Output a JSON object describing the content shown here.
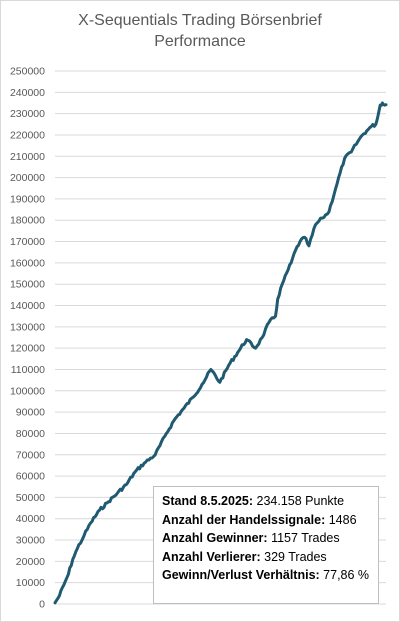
{
  "title_line1": "X-Sequentials Trading Börsenbrief",
  "title_line2": "Performance",
  "colors": {
    "series": "#1f5a70",
    "grid": "#d9d9d9",
    "text": "#595959"
  },
  "info_box": [
    {
      "label": "Stand 8.5.2025:",
      "value": "234.158 Punkte"
    },
    {
      "label": "Anzahl der Handelssignale:",
      "value": "1486"
    },
    {
      "label": "Anzahl Gewinner:",
      "value": "1157 Trades"
    },
    {
      "label": "Anzahl Verlierer:",
      "value": "329 Trades"
    },
    {
      "label": "Gewinn/Verlust Verhältnis:",
      "value": "77,86 %"
    }
  ],
  "chart_data": {
    "type": "line",
    "title": "X-Sequentials Trading Börsenbrief Performance",
    "xlabel": "",
    "ylabel": "",
    "ylim": [
      0,
      250000
    ],
    "yticks": [
      "0",
      "10000",
      "20000",
      "30000",
      "40000",
      "50000",
      "60000",
      "70000",
      "80000",
      "90000",
      "100000",
      "110000",
      "120000",
      "130000",
      "140000",
      "150000",
      "160000",
      "170000",
      "180000",
      "190000",
      "200000",
      "210000",
      "220000",
      "230000",
      "240000",
      "250000"
    ],
    "grid": true,
    "legend": "none",
    "series": [
      {
        "x": [
          0,
          20,
          40,
          60,
          80,
          100,
          130,
          160,
          200,
          240,
          280,
          320,
          360,
          400,
          450,
          500,
          540,
          580,
          620,
          660,
          700,
          740,
          780,
          820,
          860,
          900,
          930,
          960,
          990,
          1000,
          1020,
          1060,
          1080,
          1100,
          1120,
          1140,
          1170,
          1200,
          1230,
          1260,
          1300,
          1330,
          1360,
          1380,
          1400,
          1420,
          1440,
          1450,
          1460,
          1470,
          1480,
          1486
        ],
        "values": [
          500,
          4000,
          9000,
          14000,
          21000,
          26000,
          32000,
          38000,
          44000,
          48000,
          52000,
          56000,
          62000,
          66000,
          70000,
          80000,
          87000,
          92000,
          97000,
          103000,
          110000,
          104000,
          112000,
          118000,
          124000,
          120000,
          125000,
          132000,
          135000,
          143000,
          150000,
          160000,
          166000,
          170000,
          172000,
          168000,
          178000,
          181000,
          184000,
          195000,
          209000,
          212000,
          217000,
          220000,
          222000,
          224000,
          225000,
          229000,
          234000,
          235000,
          234000,
          234158
        ]
      }
    ]
  }
}
